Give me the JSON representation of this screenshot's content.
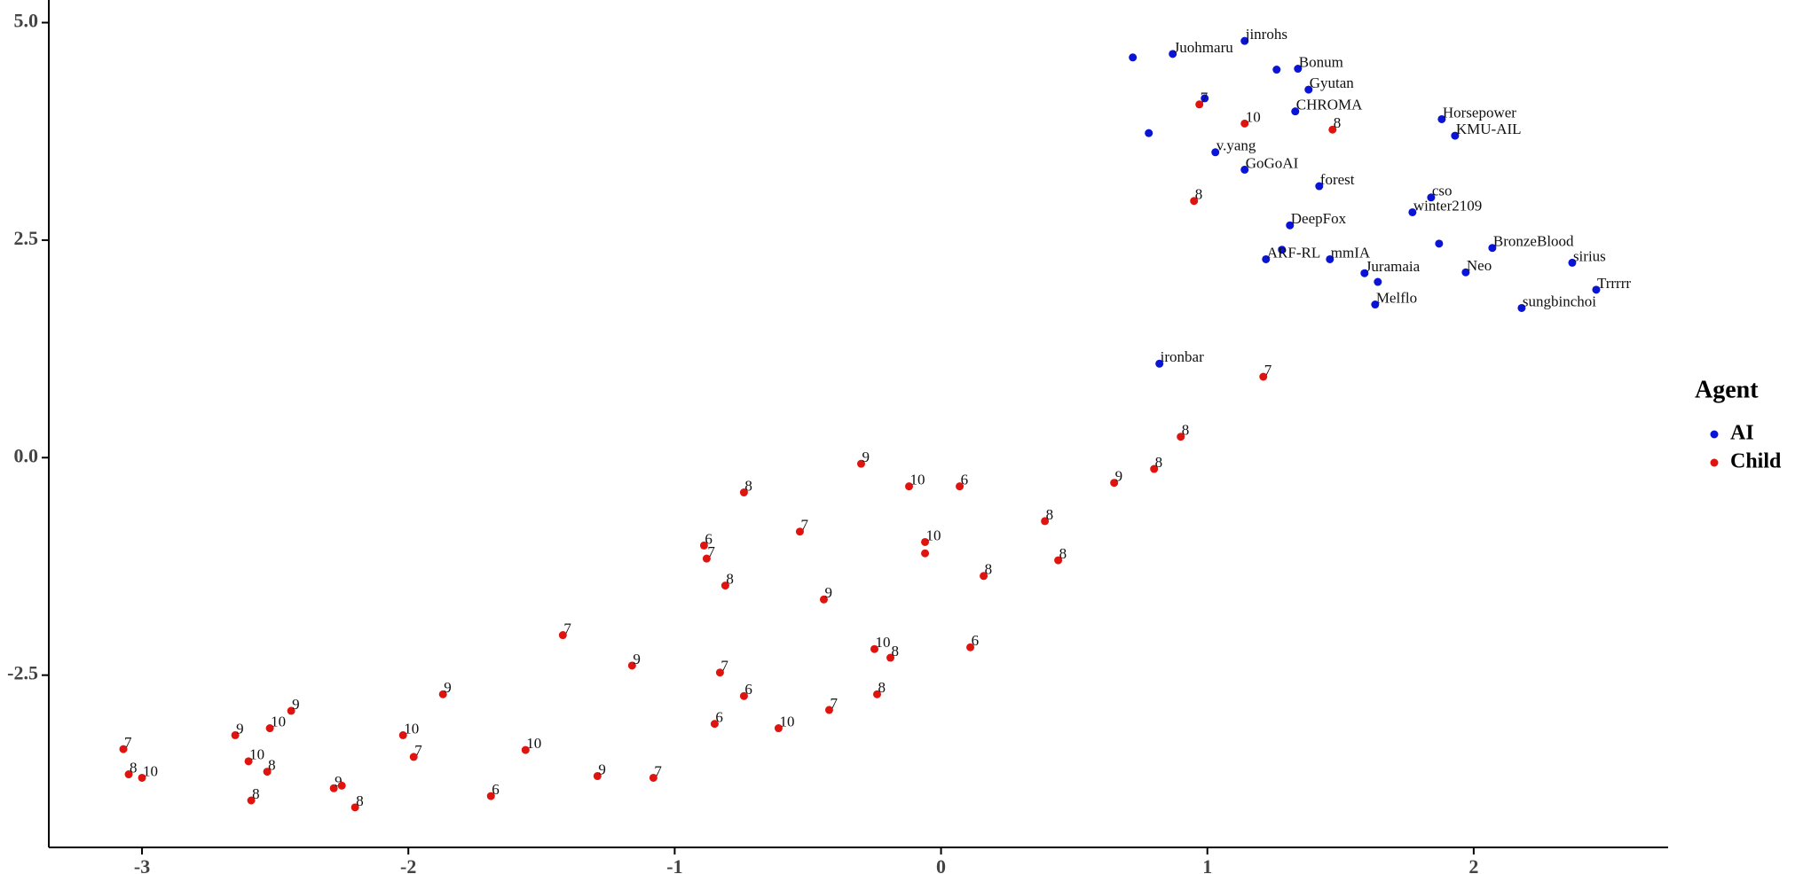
{
  "chart_data": {
    "type": "scatter",
    "legend_title": "Agent",
    "legend": "right",
    "xlim": [
      -3.35,
      2.73
    ],
    "ylim": [
      -4.48,
      5.26
    ],
    "xticks": [
      -3,
      -2,
      -1,
      0,
      1,
      2
    ],
    "yticks": [
      {
        "value": 5,
        "label": "5.0"
      },
      2.5,
      {
        "value": 0,
        "label": "0.0"
      },
      -2.5
    ],
    "grid": false,
    "series": [
      {
        "name": "AI",
        "color": "#0a14d6",
        "x": [
          0.72,
          0.87,
          1.14,
          1.26,
          1.34,
          1.38,
          0.99,
          1.33,
          0.78,
          1.88,
          1.93,
          1.03,
          1.14,
          1.42,
          1.84,
          1.77,
          1.31,
          1.87,
          2.07,
          1.28,
          1.22,
          1.46,
          2.37,
          1.59,
          1.97,
          1.64,
          2.46,
          1.63,
          2.18,
          0.82
        ],
        "values": [
          4.6,
          4.64,
          4.79,
          4.46,
          4.47,
          4.23,
          4.13,
          3.98,
          3.73,
          3.89,
          3.7,
          3.51,
          3.31,
          3.12,
          2.99,
          2.82,
          2.67,
          2.46,
          2.41,
          2.39,
          2.28,
          2.28,
          2.24,
          2.12,
          2.13,
          2.02,
          1.93,
          1.76,
          1.72,
          1.08
        ],
        "labels": [
          null,
          "Juohmaru",
          "jinrohs",
          null,
          "Bonum",
          "Gyutan",
          null,
          "CHROMA",
          null,
          "Horsepower",
          "KMU-AIL",
          "v.yang",
          "GoGoAI",
          "forest",
          "cso",
          "winter2109",
          "DeepFox",
          null,
          "BronzeBlood",
          null,
          "ARF-RL",
          "mmIA",
          "sirius",
          "Juramaia",
          "Neo",
          null,
          "Trrrrr",
          "Melflo",
          "sungbinchoi",
          "ironbar"
        ]
      },
      {
        "name": "Child",
        "color": "#e0140f",
        "x": [
          0.97,
          1.14,
          1.47,
          0.95,
          1.21,
          0.9,
          0.8,
          0.65,
          -0.3,
          -0.12,
          0.07,
          0.39,
          -0.74,
          -0.53,
          -0.89,
          -0.88,
          -0.06,
          -0.06,
          0.44,
          0.16,
          -0.81,
          -0.44,
          -1.42,
          -0.25,
          -0.19,
          0.11,
          -1.16,
          -0.83,
          -0.74,
          -0.24,
          -0.42,
          -1.87,
          -2.44,
          -0.85,
          -0.61,
          -2.02,
          -2.65,
          -2.52,
          -3.07,
          -1.56,
          -1.98,
          -2.6,
          -2.53,
          -3.05,
          -3.0,
          -1.29,
          -1.08,
          -2.28,
          -2.25,
          -1.69,
          -2.59,
          -2.2
        ],
        "values": [
          4.06,
          3.84,
          3.77,
          2.95,
          0.93,
          0.24,
          -0.13,
          -0.29,
          -0.07,
          -0.33,
          -0.33,
          -0.73,
          -0.4,
          -0.85,
          -1.01,
          -1.16,
          -0.97,
          -1.1,
          -1.18,
          -1.36,
          -1.47,
          -1.63,
          -2.04,
          -2.2,
          -2.3,
          -2.18,
          -2.39,
          -2.47,
          -2.74,
          -2.72,
          -2.9,
          -2.72,
          -2.91,
          -3.06,
          -3.11,
          -3.19,
          -3.19,
          -3.11,
          -3.35,
          -3.36,
          -3.44,
          -3.49,
          -3.61,
          -3.64,
          -3.68,
          -3.66,
          -3.68,
          -3.8,
          -3.77,
          -3.89,
          -3.94,
          -4.02
        ],
        "labels": [
          "7",
          "10",
          "8",
          "8",
          "7",
          "8",
          "8",
          "9",
          "9",
          "10",
          "6",
          "8",
          "8",
          "7",
          "6",
          "7",
          "10",
          null,
          "8",
          "8",
          "8",
          "9",
          "7",
          "10",
          "8",
          "6",
          "9",
          "7",
          "6",
          "8",
          "7",
          "9",
          "9",
          "6",
          "10",
          "10",
          "9",
          "10",
          "7",
          "10",
          "7",
          "10",
          "8",
          "8",
          "10",
          "9",
          "7",
          "9",
          null,
          "6",
          "8",
          "8"
        ]
      }
    ]
  }
}
